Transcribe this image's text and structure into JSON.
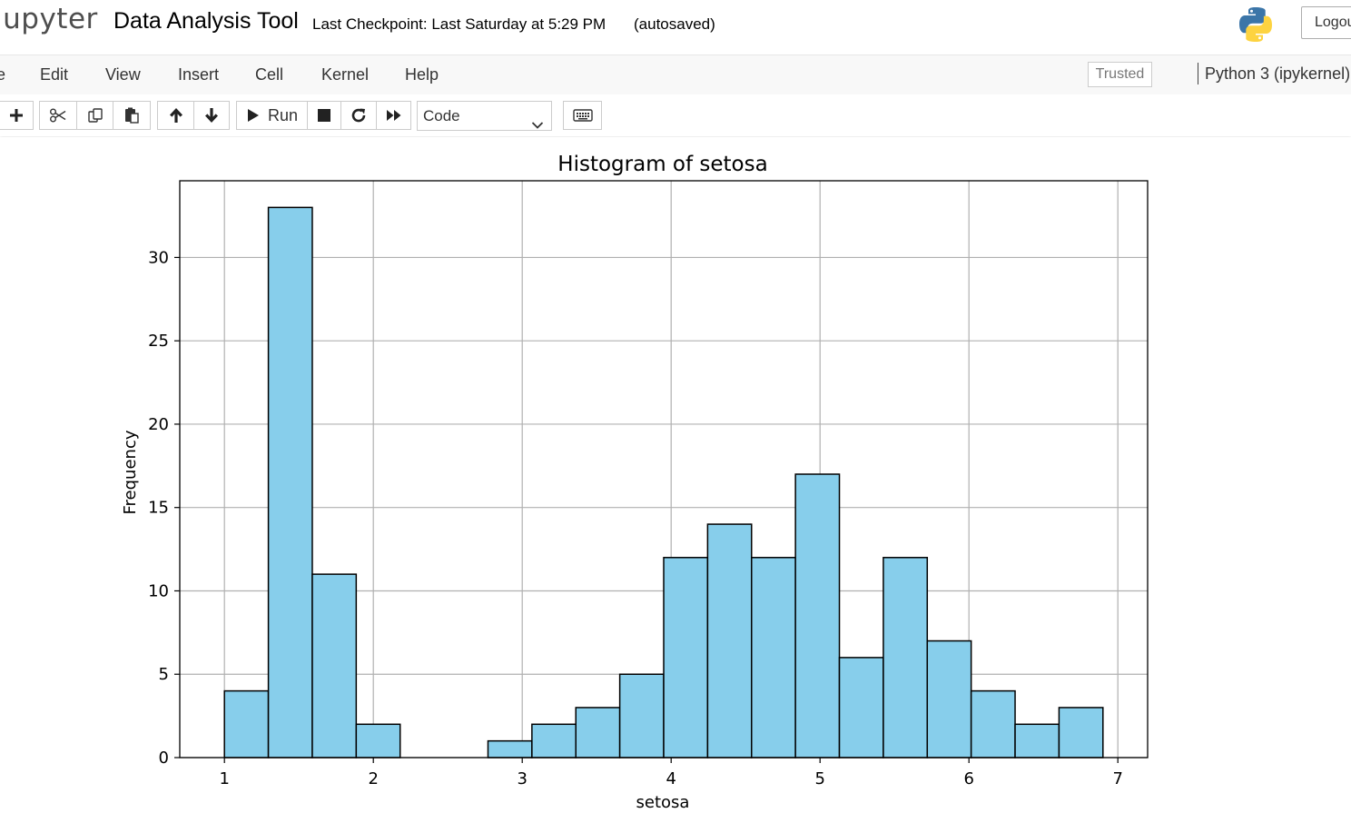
{
  "header": {
    "logo_text": "jupyter",
    "notebook_title": "Data Analysis Tool",
    "checkpoint": "Last Checkpoint: Last Saturday at 5:29 PM",
    "autosave": "(autosaved)",
    "logout_label": "Logou"
  },
  "menubar": {
    "items": [
      "e",
      "Edit",
      "View",
      "Insert",
      "Cell",
      "Kernel",
      "Help"
    ],
    "trusted_label": "Trusted",
    "kernel_label": "Python 3 (ipykernel)"
  },
  "toolbar": {
    "run_label": "Run",
    "cell_type": "Code"
  },
  "icons": {
    "add": "plus-icon",
    "cut": "scissors-icon",
    "copy": "copy-icon",
    "paste": "paste-icon",
    "up": "arrow-up-icon",
    "down": "arrow-down-icon",
    "run": "play-icon",
    "stop": "stop-icon",
    "restart": "restart-icon",
    "run_all": "fast-forward-icon",
    "keyboard": "keyboard-icon",
    "python": "python-logo-icon"
  },
  "chart_data": {
    "type": "bar",
    "title": "Histogram of setosa",
    "xlabel": "setosa",
    "ylabel": "Frequency",
    "xlim": [
      0.7,
      7.2
    ],
    "ylim": [
      0,
      34.6
    ],
    "x_ticks": [
      "1",
      "2",
      "3",
      "4",
      "5",
      "6",
      "7"
    ],
    "y_ticks": [
      "0",
      "5",
      "10",
      "15",
      "20",
      "25",
      "30"
    ],
    "grid": true,
    "bar_color": "#87ceeb",
    "edge_color": "#000000",
    "bins": [
      {
        "start": 1.0,
        "end": 1.295,
        "value": 4
      },
      {
        "start": 1.295,
        "end": 1.59,
        "value": 33
      },
      {
        "start": 1.59,
        "end": 1.885,
        "value": 11
      },
      {
        "start": 1.885,
        "end": 2.18,
        "value": 2
      },
      {
        "start": 2.18,
        "end": 2.475,
        "value": 0
      },
      {
        "start": 2.475,
        "end": 2.77,
        "value": 0
      },
      {
        "start": 2.77,
        "end": 3.065,
        "value": 1
      },
      {
        "start": 3.065,
        "end": 3.36,
        "value": 2
      },
      {
        "start": 3.36,
        "end": 3.655,
        "value": 3
      },
      {
        "start": 3.655,
        "end": 3.95,
        "value": 5
      },
      {
        "start": 3.95,
        "end": 4.245,
        "value": 12
      },
      {
        "start": 4.245,
        "end": 4.54,
        "value": 14
      },
      {
        "start": 4.54,
        "end": 4.835,
        "value": 12
      },
      {
        "start": 4.835,
        "end": 5.13,
        "value": 17
      },
      {
        "start": 5.13,
        "end": 5.425,
        "value": 6
      },
      {
        "start": 5.425,
        "end": 5.72,
        "value": 12
      },
      {
        "start": 5.72,
        "end": 6.015,
        "value": 7
      },
      {
        "start": 6.015,
        "end": 6.31,
        "value": 4
      },
      {
        "start": 6.31,
        "end": 6.605,
        "value": 2
      },
      {
        "start": 6.605,
        "end": 6.9,
        "value": 3
      }
    ]
  }
}
